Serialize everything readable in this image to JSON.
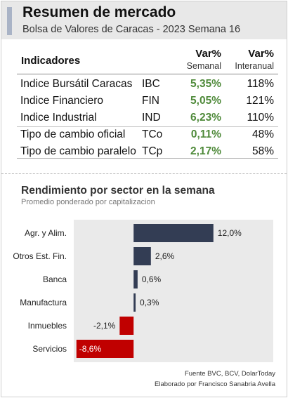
{
  "header": {
    "title": "Resumen de mercado",
    "subtitle": "Bolsa de Valores de Caracas - 2023 Semana 16"
  },
  "table": {
    "col_indicator": "Indicadores",
    "col_weekly": "Var%",
    "col_weekly_sub": "Semanal",
    "col_yearly": "Var%",
    "col_yearly_sub": "Interanual",
    "rows": [
      {
        "name": "Indice Bursátil Caracas",
        "code": "IBC",
        "weekly": "5,35%",
        "yearly": "118%"
      },
      {
        "name": "Indice Financiero",
        "code": "FIN",
        "weekly": "5,05%",
        "yearly": "121%"
      },
      {
        "name": "Indice Industrial",
        "code": "IND",
        "weekly": "6,23%",
        "yearly": "110%"
      },
      {
        "name": "Tipo de cambio oficial",
        "code": "TCo",
        "weekly": "0,11%",
        "yearly": "48%"
      },
      {
        "name": "Tipo de cambio paralelo",
        "code": "TCp",
        "weekly": "2,17%",
        "yearly": "58%"
      }
    ]
  },
  "colors": {
    "positive": "#333d54",
    "negative": "#c00000",
    "weekly_text": "#4f8a3a"
  },
  "chart_data": {
    "type": "bar",
    "orientation": "horizontal",
    "title": "Rendimiento por sector en la semana",
    "subtitle": "Promedio ponderado por capitalizacion",
    "categories": [
      "Agr. y Alim.",
      "Otros Est. Fin.",
      "Banca",
      "Manufactura",
      "Inmuebles",
      "Servicios"
    ],
    "values": [
      12.0,
      2.6,
      0.6,
      0.3,
      -2.1,
      -8.6
    ],
    "labels": [
      "12,0%",
      "2,6%",
      "0,6%",
      "0,3%",
      "-2,1%",
      "-8,6%"
    ],
    "xlim": [
      -9,
      21
    ],
    "grid": false,
    "legend": "none"
  },
  "footer": {
    "source": "Fuente BVC, BCV, DolarToday",
    "author": "Elaborado por Francisco Sanabria Avella"
  }
}
